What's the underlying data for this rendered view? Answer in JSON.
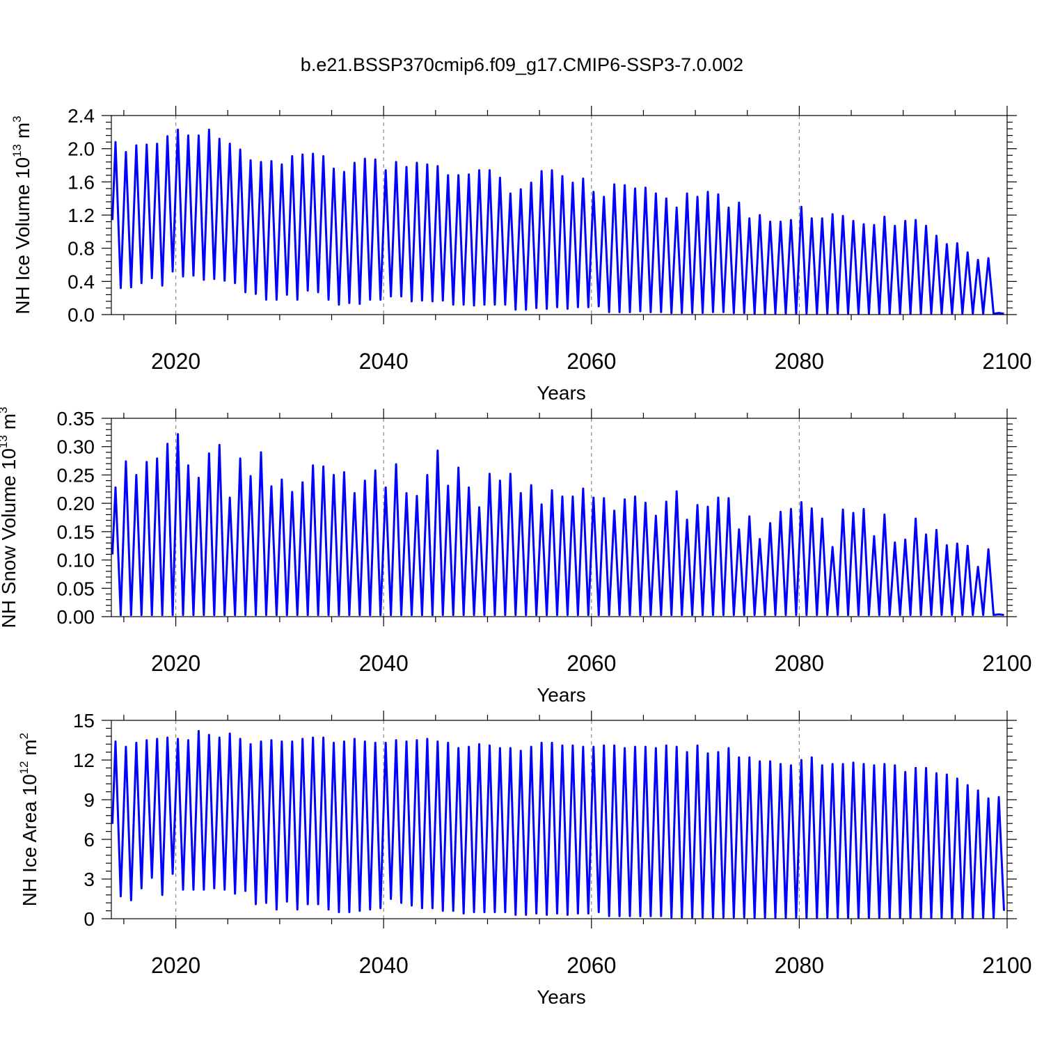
{
  "title": "b.e21.BSSP370cmip6.f09_g17.CMIP6-SSP3-7.0.002",
  "colors": {
    "series": "#0000ff",
    "axes": "#000000",
    "grid": "#888888"
  },
  "chart_data": [
    {
      "type": "line",
      "panel": "nh-ice-volume",
      "ylabel": "NH Ice Volume",
      "unit": {
        "base": "10",
        "exp": "13",
        "unit": "m",
        "unit_exp": "3"
      },
      "xlabel": "Years",
      "xlim": [
        2013.8,
        2100
      ],
      "ylim": [
        0,
        2.4
      ],
      "xticks": [
        "2020",
        "2040",
        "2060",
        "2080",
        "2100"
      ],
      "yticks": [
        "0.0",
        "0.4",
        "0.8",
        "1.2",
        "1.6",
        "2.0",
        "2.4"
      ],
      "grid": "dashed vertical lines at 2020, 2040, 2060, 2080",
      "series": [
        {
          "years": [
            2014,
            2015,
            2016,
            2017,
            2018,
            2019,
            2020,
            2021,
            2022,
            2023,
            2024,
            2025,
            2026,
            2027,
            2028,
            2029,
            2030,
            2031,
            2032,
            2033,
            2034,
            2035,
            2036,
            2037,
            2038,
            2039,
            2040,
            2041,
            2042,
            2043,
            2044,
            2045,
            2046,
            2047,
            2048,
            2049,
            2050,
            2051,
            2052,
            2053,
            2054,
            2055,
            2056,
            2057,
            2058,
            2059,
            2060,
            2061,
            2062,
            2063,
            2064,
            2065,
            2066,
            2067,
            2068,
            2069,
            2070,
            2071,
            2072,
            2073,
            2074,
            2075,
            2076,
            2077,
            2078,
            2079,
            2080,
            2081,
            2082,
            2083,
            2084,
            2085,
            2086,
            2087,
            2088,
            2089,
            2090,
            2091,
            2092,
            2093,
            2094,
            2095,
            2096,
            2097,
            2098,
            2099
          ],
          "max": [
            2.08,
            1.96,
            2.04,
            2.05,
            2.06,
            2.15,
            2.23,
            2.16,
            2.16,
            2.23,
            2.12,
            2.06,
            1.99,
            1.86,
            1.84,
            1.85,
            1.81,
            1.91,
            1.93,
            1.94,
            1.91,
            1.76,
            1.72,
            1.83,
            1.88,
            1.87,
            1.74,
            1.84,
            1.78,
            1.83,
            1.81,
            1.79,
            1.68,
            1.68,
            1.69,
            1.74,
            1.74,
            1.65,
            1.46,
            1.51,
            1.59,
            1.73,
            1.74,
            1.67,
            1.59,
            1.64,
            1.48,
            1.42,
            1.57,
            1.56,
            1.52,
            1.53,
            1.46,
            1.4,
            1.29,
            1.46,
            1.42,
            1.48,
            1.45,
            1.29,
            1.35,
            1.16,
            1.2,
            1.12,
            1.12,
            1.14,
            1.3,
            1.16,
            1.16,
            1.21,
            1.19,
            1.13,
            1.09,
            1.08,
            1.18,
            1.07,
            1.13,
            1.14,
            1.07,
            0.95,
            0.85,
            0.86,
            0.75,
            0.66,
            0.68,
            0.02
          ],
          "min": [
            0.32,
            0.33,
            0.38,
            0.44,
            0.35,
            0.52,
            0.46,
            0.47,
            0.42,
            0.43,
            0.41,
            0.38,
            0.27,
            0.25,
            0.18,
            0.18,
            0.24,
            0.18,
            0.29,
            0.27,
            0.18,
            0.12,
            0.14,
            0.13,
            0.18,
            0.18,
            0.22,
            0.22,
            0.16,
            0.17,
            0.16,
            0.17,
            0.12,
            0.12,
            0.11,
            0.12,
            0.12,
            0.12,
            0.06,
            0.06,
            0.08,
            0.07,
            0.09,
            0.07,
            0.09,
            0.09,
            0.1,
            0.03,
            0.03,
            0.03,
            0.04,
            0.03,
            0.03,
            0.02,
            0.02,
            0.02,
            0.02,
            0.03,
            0.03,
            0.02,
            0.02,
            0.01,
            0.01,
            0.01,
            0.01,
            0.01,
            0.01,
            0.01,
            0.01,
            0.01,
            0.01,
            0.01,
            0.01,
            0.01,
            0.01,
            0.01,
            0.01,
            0.01,
            0.01,
            0.01,
            0.01,
            0.01,
            0.01,
            0.01,
            0.01,
            0.01
          ]
        }
      ]
    },
    {
      "type": "line",
      "panel": "nh-snow-volume",
      "ylabel": "NH Snow Volume",
      "unit": {
        "base": "10",
        "exp": "13",
        "unit": "m",
        "unit_exp": "3"
      },
      "xlabel": "Years",
      "xlim": [
        2013.8,
        2100
      ],
      "ylim": [
        0,
        0.35
      ],
      "xticks": [
        "2020",
        "2040",
        "2060",
        "2080",
        "2100"
      ],
      "yticks": [
        "0.00",
        "0.05",
        "0.10",
        "0.15",
        "0.20",
        "0.25",
        "0.30",
        "0.35"
      ],
      "grid": "dashed vertical lines at 2020, 2040, 2060, 2080",
      "series": [
        {
          "years": [
            2014,
            2015,
            2016,
            2017,
            2018,
            2019,
            2020,
            2021,
            2022,
            2023,
            2024,
            2025,
            2026,
            2027,
            2028,
            2029,
            2030,
            2031,
            2032,
            2033,
            2034,
            2035,
            2036,
            2037,
            2038,
            2039,
            2040,
            2041,
            2042,
            2043,
            2044,
            2045,
            2046,
            2047,
            2048,
            2049,
            2050,
            2051,
            2052,
            2053,
            2054,
            2055,
            2056,
            2057,
            2058,
            2059,
            2060,
            2061,
            2062,
            2063,
            2064,
            2065,
            2066,
            2067,
            2068,
            2069,
            2070,
            2071,
            2072,
            2073,
            2074,
            2075,
            2076,
            2077,
            2078,
            2079,
            2080,
            2081,
            2082,
            2083,
            2084,
            2085,
            2086,
            2087,
            2088,
            2089,
            2090,
            2091,
            2092,
            2093,
            2094,
            2095,
            2096,
            2097,
            2098,
            2099
          ],
          "max": [
            0.228,
            0.274,
            0.25,
            0.273,
            0.279,
            0.305,
            0.322,
            0.267,
            0.245,
            0.288,
            0.303,
            0.21,
            0.279,
            0.248,
            0.29,
            0.23,
            0.242,
            0.22,
            0.237,
            0.267,
            0.265,
            0.25,
            0.255,
            0.218,
            0.24,
            0.258,
            0.228,
            0.269,
            0.218,
            0.213,
            0.25,
            0.293,
            0.231,
            0.263,
            0.228,
            0.193,
            0.252,
            0.24,
            0.252,
            0.218,
            0.232,
            0.198,
            0.223,
            0.212,
            0.212,
            0.226,
            0.21,
            0.209,
            0.187,
            0.207,
            0.212,
            0.201,
            0.178,
            0.203,
            0.221,
            0.171,
            0.197,
            0.194,
            0.21,
            0.209,
            0.154,
            0.177,
            0.137,
            0.165,
            0.185,
            0.19,
            0.202,
            0.191,
            0.173,
            0.123,
            0.189,
            0.183,
            0.19,
            0.142,
            0.18,
            0.131,
            0.136,
            0.173,
            0.145,
            0.153,
            0.126,
            0.129,
            0.125,
            0.088,
            0.119,
            0.004
          ],
          "min": [
            0.003,
            0.003,
            0.003,
            0.003,
            0.003,
            0.003,
            0.003,
            0.003,
            0.003,
            0.003,
            0.003,
            0.003,
            0.003,
            0.003,
            0.003,
            0.003,
            0.003,
            0.003,
            0.003,
            0.003,
            0.003,
            0.003,
            0.003,
            0.003,
            0.003,
            0.003,
            0.003,
            0.003,
            0.003,
            0.003,
            0.003,
            0.003,
            0.003,
            0.003,
            0.003,
            0.003,
            0.003,
            0.003,
            0.003,
            0.003,
            0.003,
            0.003,
            0.003,
            0.003,
            0.003,
            0.003,
            0.003,
            0.003,
            0.003,
            0.003,
            0.003,
            0.003,
            0.003,
            0.003,
            0.003,
            0.003,
            0.003,
            0.003,
            0.003,
            0.003,
            0.003,
            0.003,
            0.003,
            0.003,
            0.003,
            0.003,
            0.003,
            0.003,
            0.003,
            0.003,
            0.003,
            0.003,
            0.003,
            0.003,
            0.003,
            0.003,
            0.003,
            0.003,
            0.003,
            0.003,
            0.003,
            0.003,
            0.003,
            0.003,
            0.003,
            0.003
          ]
        }
      ]
    },
    {
      "type": "line",
      "panel": "nh-ice-area",
      "ylabel": "NH Ice Area",
      "unit": {
        "base": "10",
        "exp": "12",
        "unit": "m",
        "unit_exp": "2"
      },
      "xlabel": "Years",
      "xlim": [
        2013.8,
        2100
      ],
      "ylim": [
        0,
        15
      ],
      "xticks": [
        "2020",
        "2040",
        "2060",
        "2080",
        "2100"
      ],
      "yticks": [
        "0",
        "3",
        "6",
        "9",
        "12",
        "15"
      ],
      "grid": "dashed vertical lines at 2020, 2040, 2060, 2080",
      "series": [
        {
          "years": [
            2014,
            2015,
            2016,
            2017,
            2018,
            2019,
            2020,
            2021,
            2022,
            2023,
            2024,
            2025,
            2026,
            2027,
            2028,
            2029,
            2030,
            2031,
            2032,
            2033,
            2034,
            2035,
            2036,
            2037,
            2038,
            2039,
            2040,
            2041,
            2042,
            2043,
            2044,
            2045,
            2046,
            2047,
            2048,
            2049,
            2050,
            2051,
            2052,
            2053,
            2054,
            2055,
            2056,
            2057,
            2058,
            2059,
            2060,
            2061,
            2062,
            2063,
            2064,
            2065,
            2066,
            2067,
            2068,
            2069,
            2070,
            2071,
            2072,
            2073,
            2074,
            2075,
            2076,
            2077,
            2078,
            2079,
            2080,
            2081,
            2082,
            2083,
            2084,
            2085,
            2086,
            2087,
            2088,
            2089,
            2090,
            2091,
            2092,
            2093,
            2094,
            2095,
            2096,
            2097,
            2098,
            2099
          ],
          "max": [
            13.4,
            13.0,
            13.3,
            13.5,
            13.6,
            13.7,
            13.6,
            13.5,
            14.2,
            13.9,
            13.7,
            14.0,
            13.6,
            13.2,
            13.4,
            13.5,
            13.4,
            13.4,
            13.6,
            13.7,
            13.7,
            13.3,
            13.4,
            13.6,
            13.4,
            13.3,
            13.3,
            13.5,
            13.4,
            13.5,
            13.6,
            13.4,
            13.3,
            12.9,
            13.0,
            13.2,
            13.1,
            12.9,
            12.9,
            12.7,
            13.0,
            13.3,
            13.3,
            13.1,
            13.1,
            13.0,
            13.0,
            13.1,
            13.1,
            12.9,
            13.0,
            13.0,
            12.9,
            13.1,
            13.0,
            12.6,
            13.1,
            12.5,
            12.6,
            12.9,
            12.2,
            12.2,
            11.9,
            11.9,
            11.7,
            11.6,
            12.0,
            12.2,
            11.6,
            11.7,
            11.7,
            11.8,
            11.7,
            11.6,
            11.7,
            11.6,
            11.1,
            11.4,
            11.4,
            11.0,
            10.9,
            10.6,
            10.1,
            9.7,
            9.1,
            9.2
          ],
          "min": [
            1.7,
            1.4,
            2.3,
            3.1,
            1.8,
            3.4,
            2.2,
            2.2,
            2.2,
            2.3,
            2.2,
            1.9,
            2.1,
            1.1,
            1.2,
            0.7,
            1.3,
            0.7,
            1.1,
            1.1,
            0.7,
            0.5,
            0.5,
            0.6,
            0.7,
            0.8,
            1.5,
            1.2,
            1.0,
            0.8,
            0.8,
            0.6,
            0.6,
            0.4,
            0.5,
            0.5,
            0.5,
            0.5,
            0.3,
            0.3,
            0.4,
            0.3,
            0.4,
            0.3,
            0.4,
            0.4,
            0.5,
            0.2,
            0.2,
            0.2,
            0.2,
            0.2,
            0.2,
            0.1,
            0.1,
            0.1,
            0.1,
            0.1,
            0.1,
            0.1,
            0.1,
            0.05,
            0.05,
            0.05,
            0.05,
            0.05,
            0.05,
            0.05,
            0.05,
            0.05,
            0.05,
            0.05,
            0.05,
            0.05,
            0.05,
            0.05,
            0.05,
            0.05,
            0.05,
            0.05,
            0.05,
            0.05,
            0.05,
            0.05,
            0.05,
            0.6
          ]
        }
      ]
    }
  ]
}
